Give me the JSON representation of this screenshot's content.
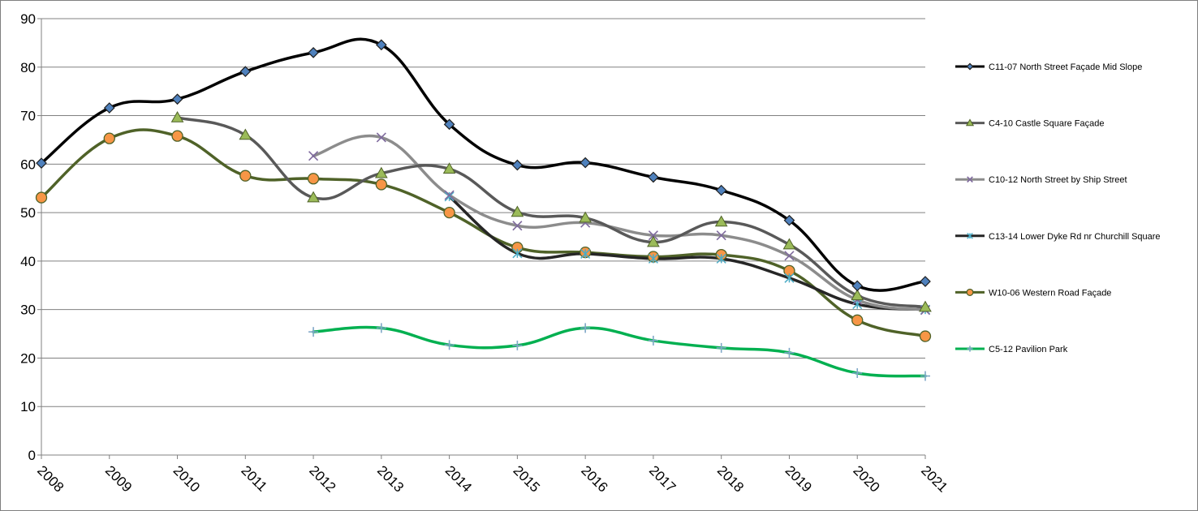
{
  "chart_data": {
    "type": "line",
    "title": "",
    "xlabel": "",
    "ylabel": "",
    "ylim": [
      0,
      90
    ],
    "yticks": [
      "0",
      "10",
      "20",
      "30",
      "40",
      "50",
      "60",
      "70",
      "80",
      "90"
    ],
    "categories": [
      "2008",
      "2009",
      "2010",
      "2011",
      "2012",
      "2013",
      "2014",
      "2015",
      "2016",
      "2017",
      "2018",
      "2019",
      "2020",
      "2021"
    ],
    "grid": "horizontal",
    "smooth": true,
    "legend_position": "right",
    "series": [
      {
        "name": "C11-07 North Street Façade Mid Slope",
        "color": "#000000",
        "marker": "diamond",
        "marker_fill": "#4f81bd",
        "values": [
          60.2,
          71.6,
          73.4,
          79.1,
          83.0,
          84.6,
          68.2,
          59.8,
          60.3,
          57.3,
          54.6,
          48.4,
          34.9,
          35.8
        ]
      },
      {
        "name": "C4-10 Castle Square Façade",
        "color": "#595959",
        "marker": "triangle",
        "marker_fill": "#9bbb59",
        "values": [
          null,
          null,
          69.6,
          66.0,
          53.1,
          58.1,
          59.0,
          50.1,
          48.9,
          43.9,
          48.1,
          43.4,
          32.9,
          30.5
        ]
      },
      {
        "name": "C10-12 North Street by Ship Street",
        "color": "#8c8c8c",
        "marker": "x",
        "marker_fill": "#7f6a9e",
        "values": [
          null,
          null,
          null,
          null,
          61.7,
          65.5,
          53.6,
          47.3,
          47.9,
          45.3,
          45.3,
          41.1,
          32.0,
          29.9
        ]
      },
      {
        "name": "C13-14 Lower Dyke Rd nr Churchill Square",
        "color": "#262626",
        "marker": "star",
        "marker_fill": "#4bacc6",
        "values": [
          null,
          null,
          null,
          null,
          null,
          null,
          53.3,
          41.6,
          41.5,
          40.5,
          40.5,
          36.5,
          31.1,
          30.0
        ]
      },
      {
        "name": "W10-06 Western Road Façade",
        "color": "#4f6228",
        "marker": "circle",
        "marker_fill": "#f79646",
        "values": [
          53.1,
          65.3,
          65.8,
          57.6,
          57.0,
          55.8,
          50.0,
          42.8,
          41.8,
          40.9,
          41.3,
          38.0,
          27.8,
          24.5
        ]
      },
      {
        "name": "C5-12 Pavilion Park",
        "color": "#00b050",
        "marker": "plus",
        "marker_fill": "#7fa7c7",
        "values": [
          null,
          null,
          null,
          null,
          25.4,
          26.2,
          22.7,
          22.6,
          26.2,
          23.6,
          22.1,
          21.1,
          16.9,
          16.3
        ]
      }
    ]
  }
}
